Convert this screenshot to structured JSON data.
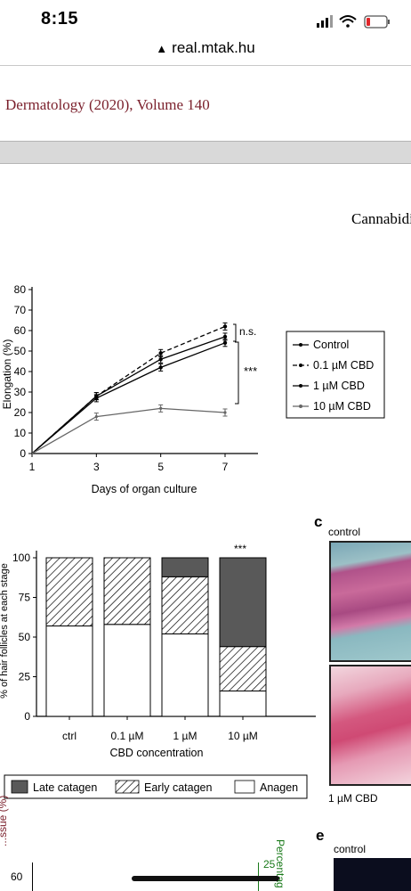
{
  "status_bar": {
    "time": "8:15"
  },
  "browser": {
    "url": "real.mtak.hu"
  },
  "header": {
    "journal": "Dermatology (2020), Volume 140",
    "running_title": "Cannabidiol"
  },
  "colors": {
    "journal_text": "#7a1f2b",
    "late": "#595959",
    "axis_right": "#1a7a1a"
  },
  "figure_a": {
    "ylabel": "Elongation (%)",
    "xlabel": "Days of organ culture",
    "yticks": [
      "0",
      "10",
      "20",
      "30",
      "40",
      "50",
      "60",
      "70",
      "80"
    ],
    "xticks": [
      "1",
      "3",
      "5",
      "7"
    ],
    "legend": [
      "Control",
      "0.1 µM CBD",
      "1 µM CBD",
      "10 µM CBD"
    ],
    "ns_label": "n.s.",
    "sig_label": "***"
  },
  "figure_b": {
    "ylabel": "% of hair follicles at each stage",
    "xlabel": "CBD concentration",
    "yticks": [
      "0",
      "25",
      "50",
      "75",
      "100"
    ],
    "sig_label": "***",
    "legend": [
      "Late catagen",
      "Early catagen",
      "Anagen"
    ]
  },
  "panel_c": {
    "letter": "c",
    "label_top": "control",
    "label_bottom": "1 µM CBD"
  },
  "panel_d": {
    "ylabel_left": "...ssue (%)",
    "ytick": "60",
    "right_tick": "25",
    "right_label": "Percentag"
  },
  "panel_e": {
    "letter": "e",
    "label": "control"
  },
  "chart_data": [
    {
      "type": "line",
      "x": [
        1,
        3,
        5,
        7
      ],
      "xlabel": "Days of organ culture",
      "ylabel": "Elongation (%)",
      "ylim": [
        0,
        80
      ],
      "legend": "right",
      "series": [
        {
          "name": "Control",
          "values": [
            0,
            27,
            42,
            54
          ]
        },
        {
          "name": "0.1 µM CBD",
          "values": [
            0,
            28,
            49,
            62
          ]
        },
        {
          "name": "1 µM CBD",
          "values": [
            0,
            28,
            46,
            57
          ]
        },
        {
          "name": "10 µM CBD",
          "values": [
            0,
            18,
            22,
            20
          ]
        }
      ]
    },
    {
      "type": "bar",
      "categories": [
        "ctrl",
        "0.1 µM",
        "1 µM",
        "10 µM"
      ],
      "xlabel": "CBD concentration",
      "ylabel": "% of hair follicles at each stage",
      "ylim": [
        0,
        100
      ],
      "stacked": true,
      "series": [
        {
          "name": "Anagen",
          "values": [
            57,
            58,
            52,
            16
          ]
        },
        {
          "name": "Early catagen",
          "values": [
            43,
            42,
            36,
            28
          ]
        },
        {
          "name": "Late catagen",
          "values": [
            0,
            0,
            12,
            56
          ]
        }
      ]
    }
  ]
}
